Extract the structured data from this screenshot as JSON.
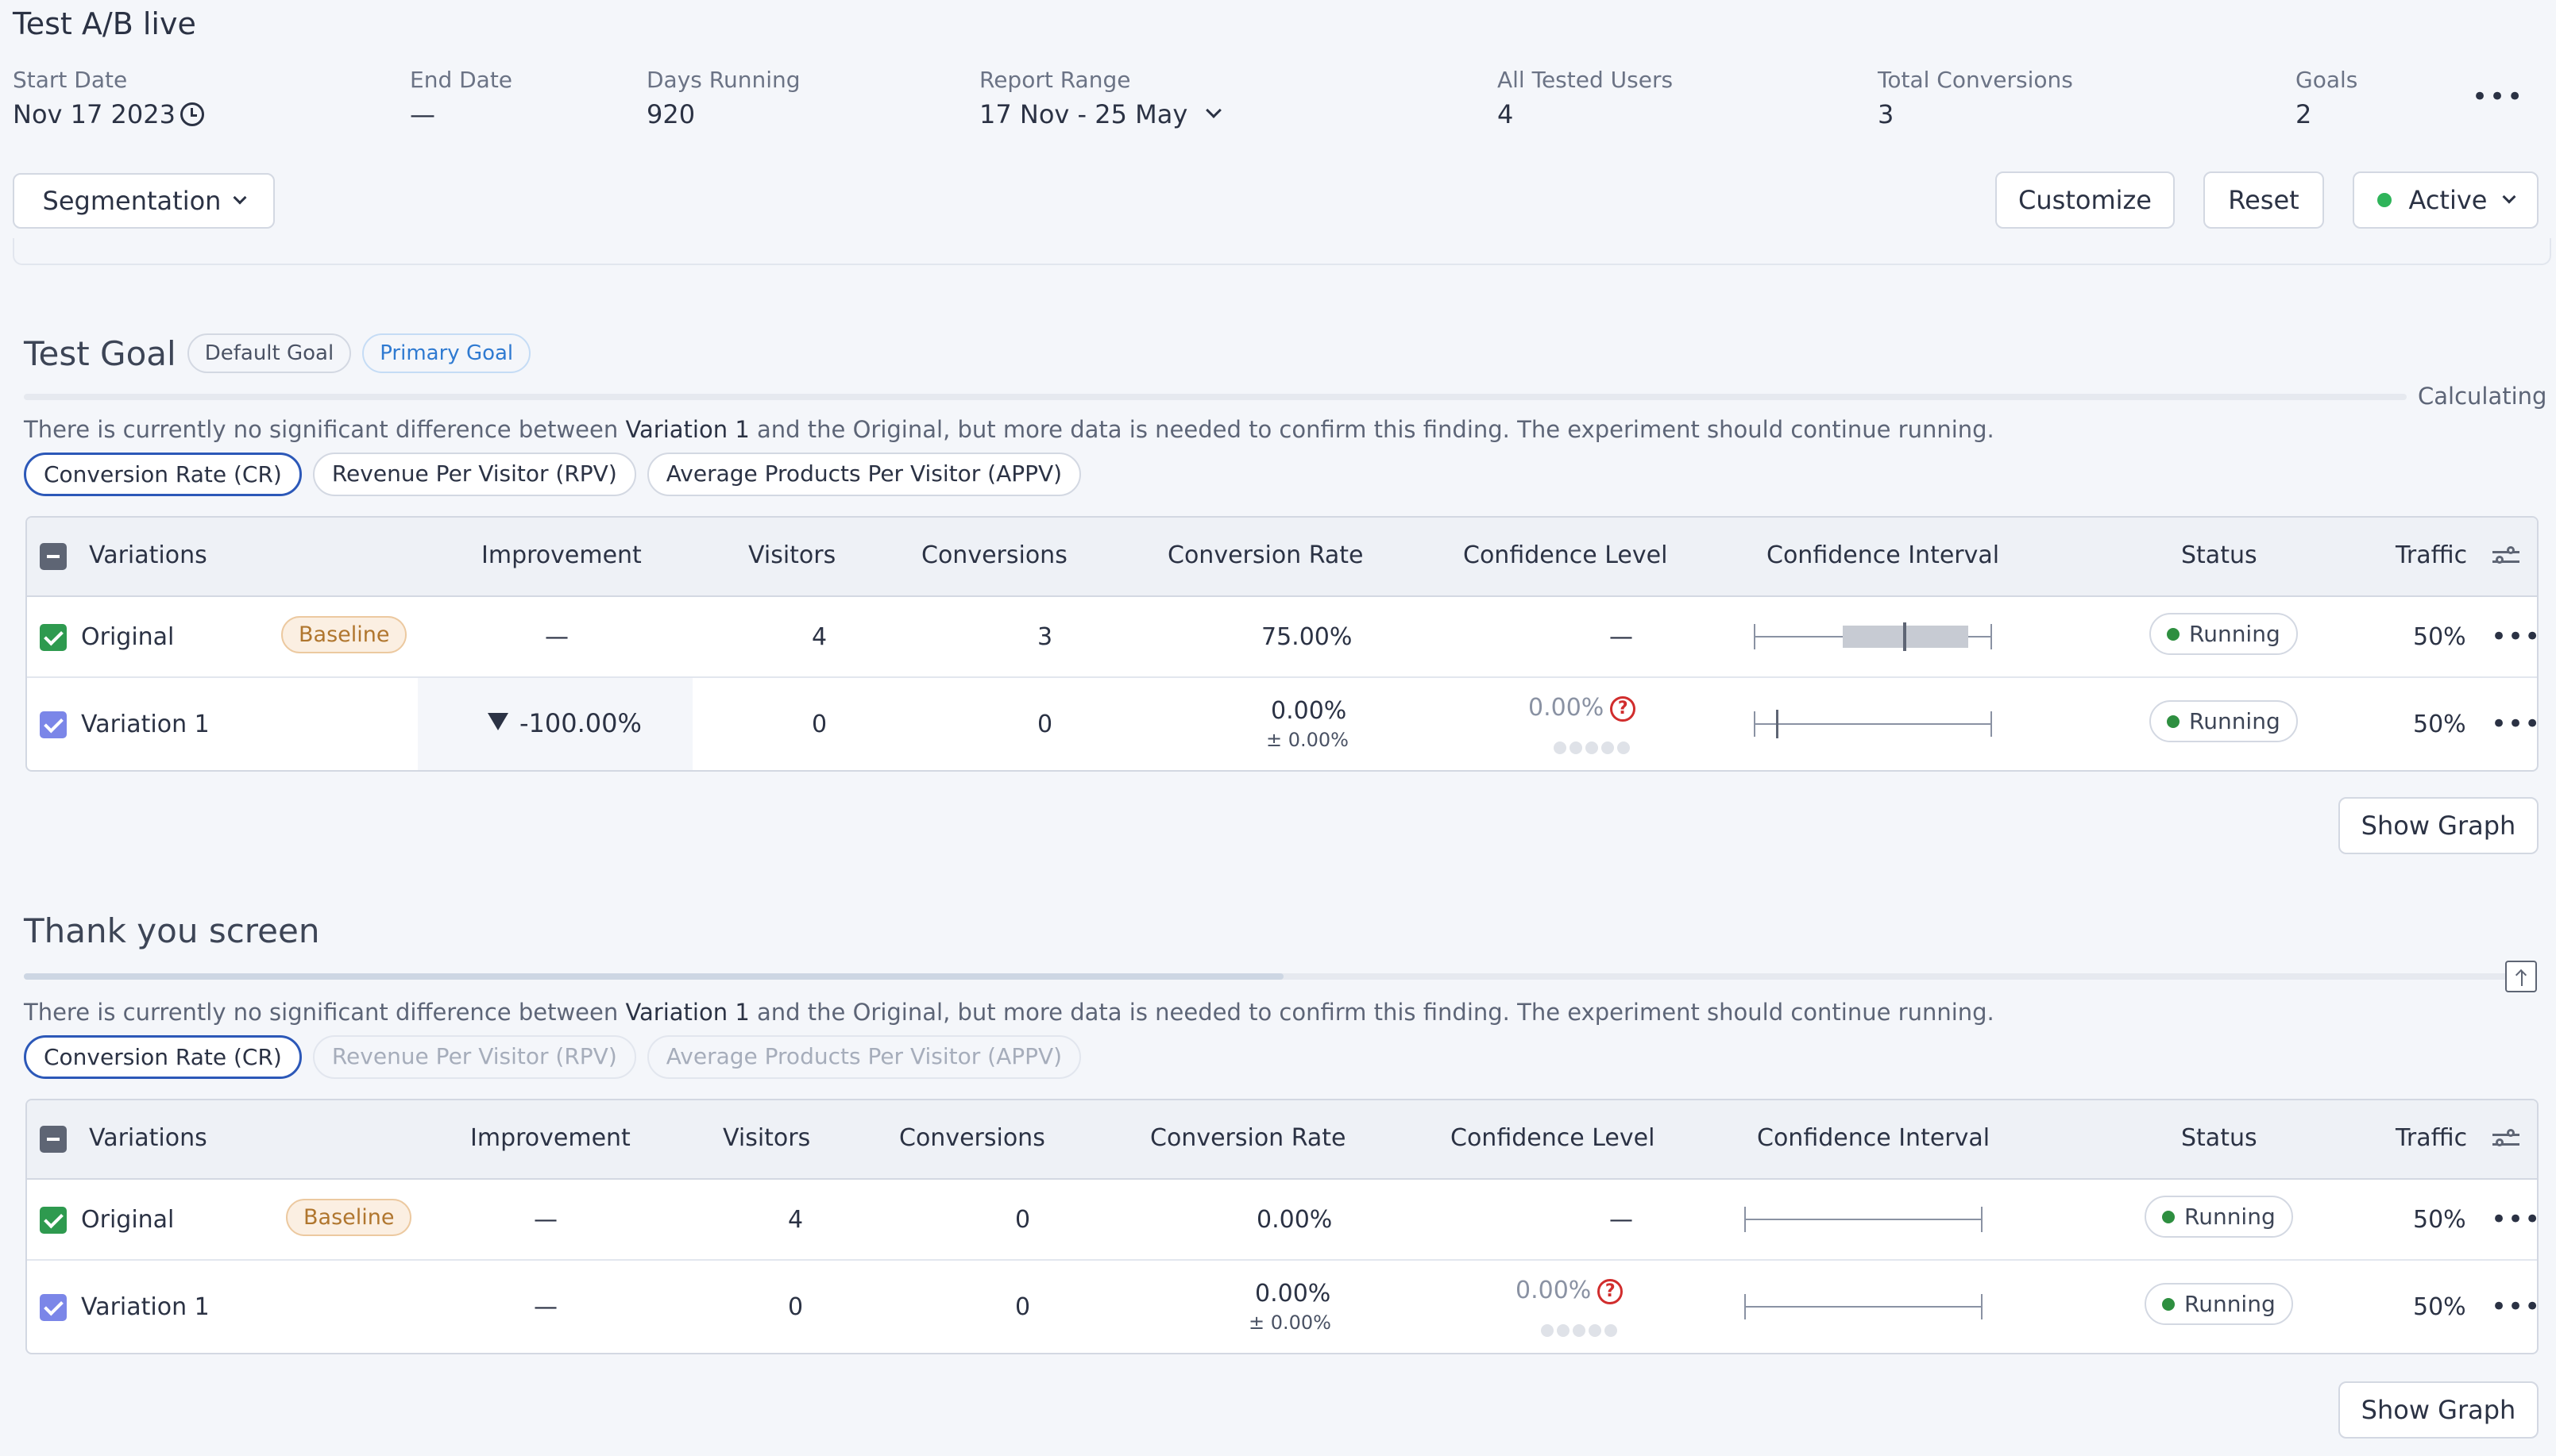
{
  "header": {
    "title": "Test A/B live",
    "stats": {
      "start_date": {
        "label": "Start Date",
        "value": "Nov 17 2023"
      },
      "end_date": {
        "label": "End Date",
        "value": "—"
      },
      "days_running": {
        "label": "Days Running",
        "value": "920"
      },
      "report_range": {
        "label": "Report Range",
        "value": "17 Nov - 25 May"
      },
      "all_tested_users": {
        "label": "All Tested Users",
        "value": "4"
      },
      "total_conversions": {
        "label": "Total Conversions",
        "value": "3"
      },
      "goals": {
        "label": "Goals",
        "value": "2"
      }
    },
    "more_label": "•••"
  },
  "toolbar": {
    "segmentation_label": "Segmentation",
    "customize_label": "Customize",
    "reset_label": "Reset",
    "status_label": "Active"
  },
  "columns": {
    "variations": "Variations",
    "improvement": "Improvement",
    "visitors": "Visitors",
    "conversions": "Conversions",
    "conversion_rate": "Conversion Rate",
    "confidence_level": "Confidence Level",
    "confidence_interval": "Confidence Interval",
    "status": "Status",
    "traffic": "Traffic"
  },
  "metrics": {
    "cr": "Conversion Rate (CR)",
    "rpv": "Revenue Per Visitor (RPV)",
    "appv": "Average Products Per Visitor (APPV)"
  },
  "sections": [
    {
      "title": "Test Goal",
      "tags": {
        "default": "Default Goal",
        "primary": "Primary Goal"
      },
      "progress_label": "Calculating",
      "message": {
        "before": "There is currently no significant difference between ",
        "variation": "Variation 1",
        "after": " and the Original, but more data is needed to confirm this finding. The experiment should continue running."
      },
      "rows": [
        {
          "name": "Original",
          "badge": "Baseline",
          "improvement": "—",
          "visitors": "4",
          "conversions": "3",
          "conversion_rate": "75.00%",
          "confidence_level": "—",
          "status": "Running",
          "traffic": "50%"
        },
        {
          "name": "Variation 1",
          "improvement": "-100.00%",
          "visitors": "0",
          "conversions": "0",
          "conversion_rate": "0.00%",
          "conversion_rate_sub": "± 0.00%",
          "confidence_level": "0.00%",
          "confidence_help": "?",
          "status": "Running",
          "traffic": "50%"
        }
      ],
      "show_graph_label": "Show Graph"
    },
    {
      "title": "Thank you screen",
      "message": {
        "before": "There is currently no significant difference between ",
        "variation": "Variation 1",
        "after": " and the Original, but more data is needed to confirm this finding. The experiment should continue running."
      },
      "rows": [
        {
          "name": "Original",
          "badge": "Baseline",
          "improvement": "—",
          "visitors": "4",
          "conversions": "0",
          "conversion_rate": "0.00%",
          "confidence_level": "—",
          "status": "Running",
          "traffic": "50%"
        },
        {
          "name": "Variation 1",
          "improvement": "—",
          "visitors": "0",
          "conversions": "0",
          "conversion_rate": "0.00%",
          "conversion_rate_sub": "± 0.00%",
          "confidence_level": "0.00%",
          "confidence_help": "?",
          "status": "Running",
          "traffic": "50%"
        }
      ],
      "show_graph_label": "Show Graph"
    }
  ],
  "row_more_label": "•••",
  "colors": {
    "accent": "#2c58b8",
    "active_dot": "#2fb45a",
    "running_dot": "#2e8f40",
    "baseline": "#b0762e",
    "help": "#d12d2d"
  }
}
